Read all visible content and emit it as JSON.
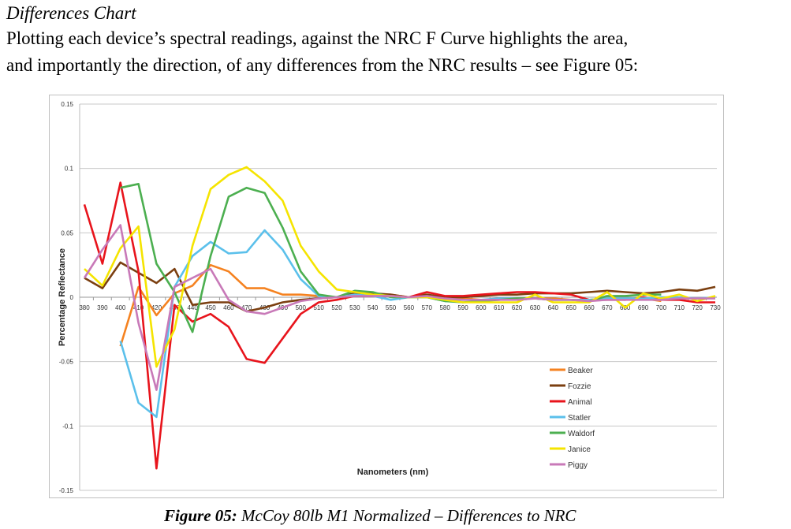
{
  "document": {
    "heading": "Differences Chart",
    "paragraph_line1": "Plotting each device’s spectral readings, against the NRC F Curve highlights the area,",
    "paragraph_line2": "and importantly the direction, of any differences from the NRC results – see Figure 05:",
    "caption_label": "Figure 05:",
    "caption_text": " McCoy 80lb M1 Normalized – Differences to NRC"
  },
  "chart_data": {
    "type": "line",
    "title": "",
    "xlabel": "Nanometers (nm)",
    "ylabel": "Percentage Reflectance",
    "ylim": [
      -0.15,
      0.15
    ],
    "yticks": [
      "0.15",
      "0.1",
      "0.05",
      "0",
      "-0.05",
      "-0.1",
      "-0.15"
    ],
    "ytick_values": [
      0.15,
      0.1,
      0.05,
      0,
      -0.05,
      -0.1,
      -0.15
    ],
    "grid": true,
    "legend_position": "bottom-right",
    "categories": [
      "380",
      "390",
      "400",
      "410",
      "420",
      "430",
      "440",
      "450",
      "460",
      "470",
      "480",
      "490",
      "500",
      "510",
      "520",
      "530",
      "540",
      "550",
      "560",
      "570",
      "580",
      "590",
      "600",
      "610",
      "620",
      "630",
      "640",
      "650",
      "660",
      "670",
      "680",
      "690",
      "700",
      "710",
      "720",
      "730"
    ],
    "series": [
      {
        "name": "Beaker",
        "color": "#f58220",
        "values": [
          null,
          null,
          -0.038,
          0.008,
          -0.014,
          0.003,
          0.009,
          0.025,
          0.02,
          0.007,
          0.007,
          0.002,
          0.002,
          0.001,
          0,
          0.002,
          0.002,
          0.002,
          0,
          0.002,
          0,
          -0.001,
          -0.002,
          -0.002,
          -0.001,
          -0.001,
          -0.001,
          -0.002,
          -0.002,
          -0.001,
          -0.002,
          -0.001,
          -0.003,
          null,
          null,
          null
        ]
      },
      {
        "name": "Fozzie",
        "color": "#7b3f10",
        "values": [
          0.015,
          0.007,
          0.027,
          0.019,
          0.011,
          0.022,
          -0.006,
          -0.004,
          -0.004,
          -0.011,
          -0.008,
          -0.004,
          -0.002,
          -0.001,
          0,
          0.003,
          0.003,
          0.002,
          0,
          0.002,
          0,
          0,
          0.001,
          0.002,
          0.002,
          0.003,
          0.003,
          0.003,
          0.004,
          0.005,
          0.004,
          0.003,
          0.004,
          0.006,
          0.005,
          0.008
        ]
      },
      {
        "name": "Animal",
        "color": "#e8141c",
        "values": [
          0.072,
          0.026,
          0.089,
          0.02,
          -0.133,
          -0.006,
          -0.019,
          -0.013,
          -0.023,
          -0.048,
          -0.051,
          -0.032,
          -0.013,
          -0.004,
          -0.002,
          0.001,
          0.001,
          0.001,
          0,
          0.004,
          0.001,
          0.001,
          0.002,
          0.003,
          0.004,
          0.004,
          0.003,
          0.002,
          -0.002,
          -0.002,
          -0.002,
          0,
          -0.002,
          -0.002,
          -0.004,
          -0.004
        ]
      },
      {
        "name": "Statler",
        "color": "#5bc0eb",
        "values": [
          null,
          null,
          -0.034,
          -0.082,
          -0.093,
          0.008,
          0.032,
          0.043,
          0.034,
          0.035,
          0.052,
          0.037,
          0.014,
          0.001,
          0,
          0.002,
          0.001,
          -0.002,
          0,
          0,
          -0.003,
          -0.002,
          -0.002,
          -0.001,
          -0.001,
          -0.001,
          -0.002,
          -0.002,
          -0.002,
          -0.001,
          -0.001,
          -0.001,
          0,
          0,
          -0.001,
          0
        ]
      },
      {
        "name": "Waldorf",
        "color": "#4caf50",
        "values": [
          null,
          null,
          0.085,
          0.088,
          0.026,
          0.004,
          -0.027,
          0.032,
          0.078,
          0.085,
          0.081,
          0.054,
          0.02,
          0.002,
          0,
          0.005,
          0.004,
          0,
          0,
          0,
          -0.003,
          -0.004,
          -0.003,
          -0.002,
          -0.001,
          -0.001,
          -0.002,
          -0.002,
          -0.003,
          0.001,
          0.001,
          0.002,
          0.002,
          null,
          null,
          null
        ]
      },
      {
        "name": "Janice",
        "color": "#f5e400",
        "values": [
          0.022,
          0.009,
          0.038,
          0.055,
          -0.054,
          -0.025,
          0.04,
          0.084,
          0.095,
          0.101,
          0.09,
          0.075,
          0.04,
          0.02,
          0.006,
          0.004,
          0.002,
          0.001,
          0,
          0,
          -0.002,
          -0.004,
          -0.004,
          -0.004,
          -0.004,
          0.002,
          -0.004,
          -0.004,
          -0.004,
          0.004,
          -0.008,
          0.003,
          -0.001,
          0.002,
          -0.003,
          0.001
        ]
      },
      {
        "name": "Piggy",
        "color": "#c879b8",
        "values": [
          0.015,
          0.037,
          0.056,
          -0.02,
          -0.072,
          0.008,
          0.015,
          0.022,
          -0.002,
          -0.011,
          -0.013,
          -0.008,
          -0.003,
          -0.001,
          0,
          0.001,
          0.001,
          0.001,
          0,
          0.001,
          -0.001,
          -0.002,
          -0.002,
          -0.002,
          -0.002,
          -0.001,
          -0.002,
          -0.002,
          -0.003,
          -0.002,
          -0.002,
          -0.002,
          -0.002,
          -0.001,
          -0.001,
          -0.001
        ]
      }
    ]
  }
}
